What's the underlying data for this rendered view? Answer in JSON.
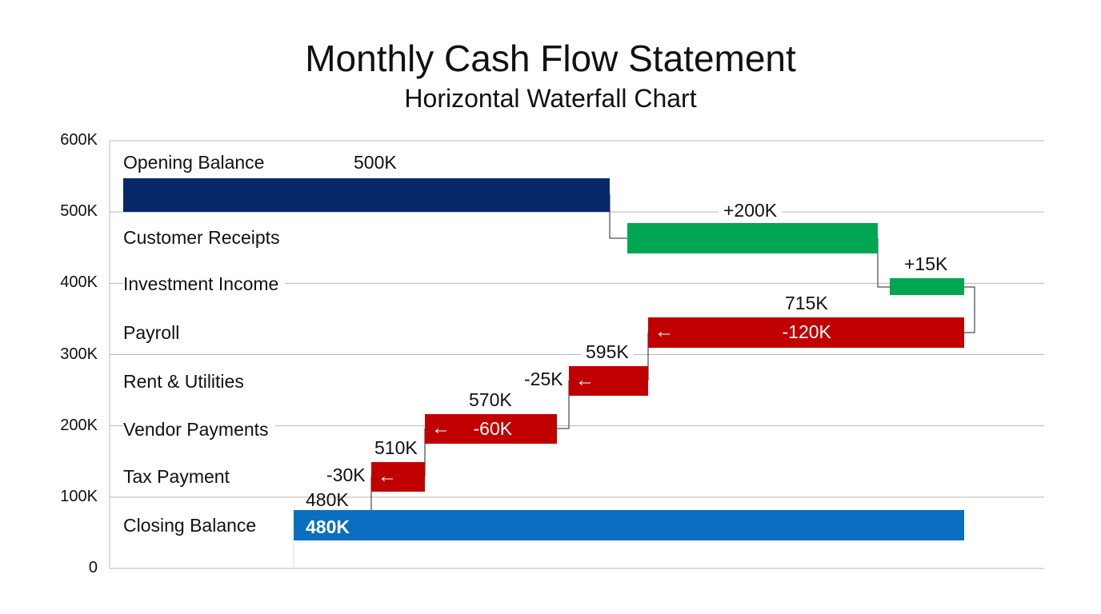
{
  "chart_data": {
    "type": "waterfall",
    "orientation": "horizontal",
    "title": "Monthly Cash Flow Statement",
    "subtitle": "Horizontal Waterfall Chart",
    "y_ticks": [
      "0",
      "100K",
      "200K",
      "300K",
      "400K",
      "500K",
      "600K"
    ],
    "ylim": [
      0,
      600000
    ],
    "grid": true,
    "categories": [
      "Opening Balance",
      "Customer Receipts",
      "Investment Income",
      "Payroll",
      "Rent & Utilities",
      "Vendor Payments",
      "Tax Payment",
      "Closing Balance"
    ],
    "bars": [
      {
        "category": "Opening Balance",
        "kind": "total",
        "value": 500000,
        "label": "500K"
      },
      {
        "category": "Customer Receipts",
        "kind": "increase",
        "value": 200000,
        "label": "+200K"
      },
      {
        "category": "Investment Income",
        "kind": "increase",
        "value": 15000,
        "label": "+15K"
      },
      {
        "category": "Payroll",
        "kind": "decrease",
        "value": -120000,
        "label": "-120K",
        "running_label": "715K"
      },
      {
        "category": "Rent & Utilities",
        "kind": "decrease",
        "value": -25000,
        "label": "-25K",
        "running_label": "595K"
      },
      {
        "category": "Vendor Payments",
        "kind": "decrease",
        "value": -60000,
        "label": "-60K",
        "running_label": "570K"
      },
      {
        "category": "Tax Payment",
        "kind": "decrease",
        "value": -30000,
        "label": "-30K",
        "running_label": "510K"
      },
      {
        "category": "Closing Balance",
        "kind": "total",
        "value": 480000,
        "label": "480K",
        "running_label": "480K"
      }
    ],
    "colors": {
      "opening": "#06286b",
      "increase": "#00a651",
      "decrease": "#c00000",
      "closing": "#0a6fc0",
      "connector": "#222222",
      "grid": "#b8b8b8"
    }
  }
}
